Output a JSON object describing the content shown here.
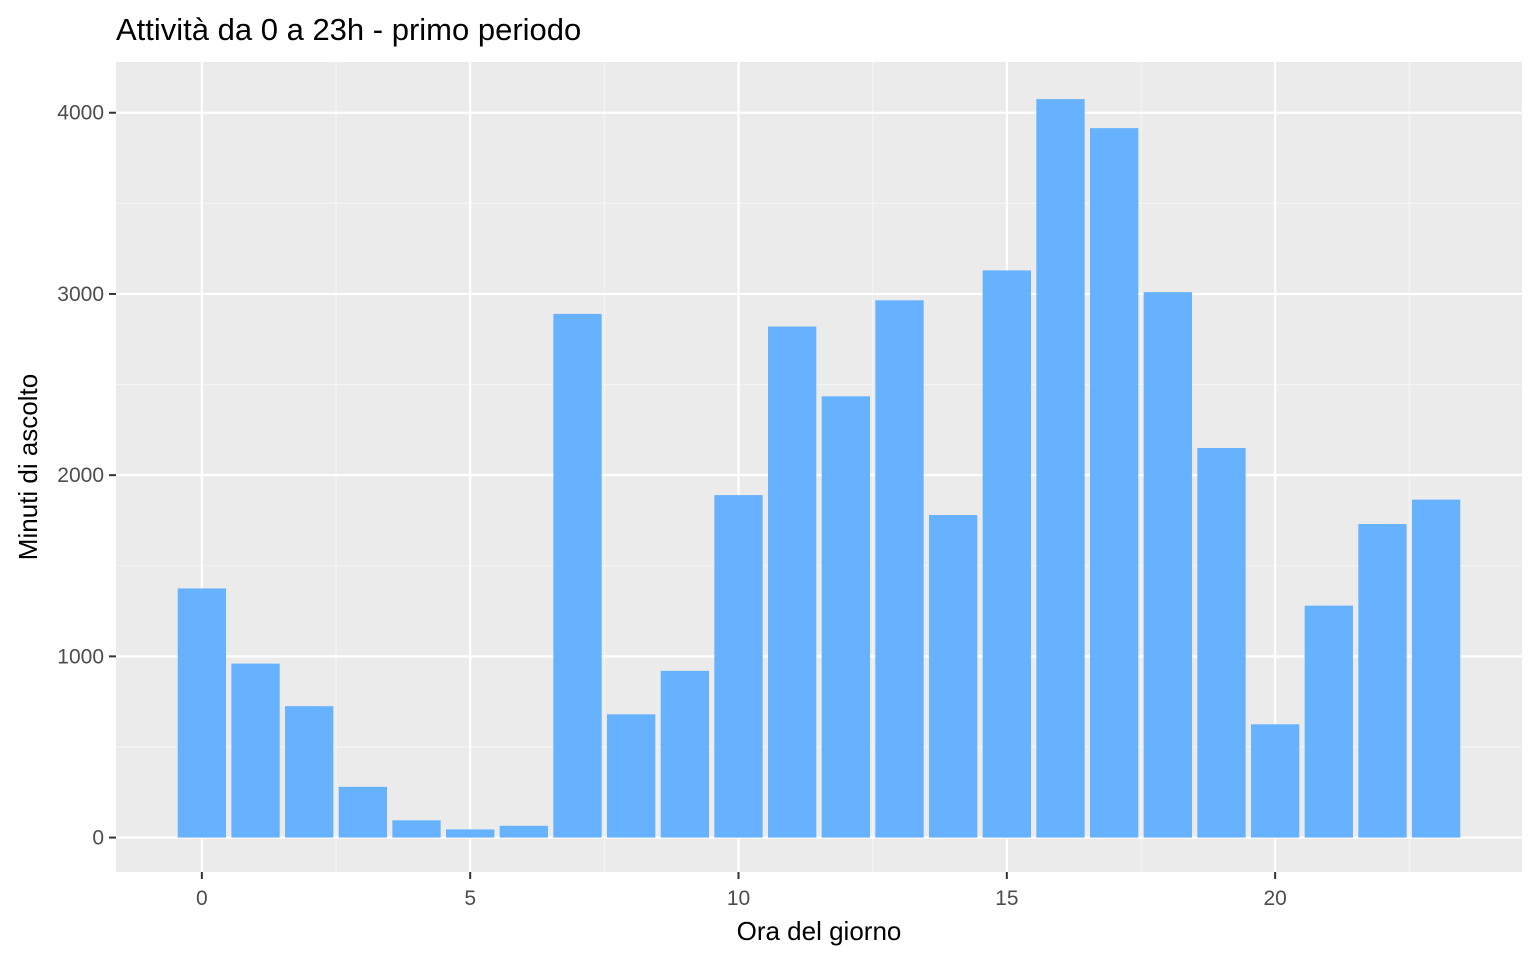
{
  "chart_data": {
    "type": "bar",
    "title": "Attività da 0 a 23h - primo periodo",
    "xlabel": "Ora del giorno",
    "ylabel": "Minuti di ascolto",
    "x": [
      0,
      1,
      2,
      3,
      4,
      5,
      6,
      7,
      8,
      9,
      10,
      11,
      12,
      13,
      14,
      15,
      16,
      17,
      18,
      19,
      20,
      21,
      22,
      23
    ],
    "values": [
      1375,
      960,
      725,
      280,
      95,
      45,
      65,
      2890,
      680,
      920,
      1890,
      2820,
      2435,
      2965,
      1780,
      3130,
      4075,
      3915,
      3010,
      2150,
      625,
      1280,
      1730,
      1865
    ],
    "xlim": [
      -1.6,
      24.6
    ],
    "ylim": [
      -190,
      4280
    ],
    "xticks": [
      0,
      5,
      10,
      15,
      20
    ],
    "xtick_labels": [
      "0",
      "5",
      "10",
      "15",
      "20"
    ],
    "yticks": [
      0,
      1000,
      2000,
      3000,
      4000
    ],
    "ytick_labels": [
      "0",
      "1000",
      "2000",
      "3000",
      "4000"
    ],
    "grid": true,
    "legend": "none",
    "colors": {
      "bar": "#66b2ff",
      "panel_background": "#ebebeb",
      "grid_major": "#ffffff",
      "grid_minor": "#f5f5f5",
      "tick_mark": "#333333",
      "tick_text": "#4d4d4d"
    }
  }
}
